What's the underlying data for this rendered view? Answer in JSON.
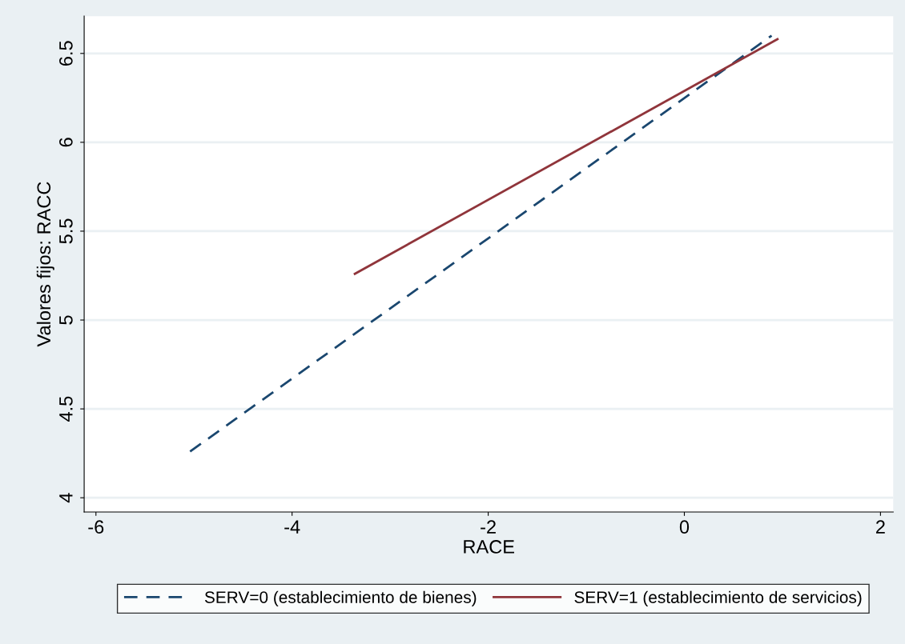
{
  "chart_data": {
    "type": "line",
    "xlabel": "RACE",
    "ylabel": "Valores fijos: RACC",
    "series": [
      {
        "name": "SERV=0 (establecimiento de bienes)",
        "color": "#1a476f",
        "line_style": "dashed",
        "x": [
          -5.04,
          0.89
        ],
        "values": [
          4.26,
          6.6
        ]
      },
      {
        "name": "SERV=1 (establecimiento de servicios)",
        "color": "#90353b",
        "line_style": "solid",
        "x": [
          -3.36,
          0.95
        ],
        "values": [
          5.26,
          6.58
        ]
      }
    ],
    "xlim": [
      -6.12,
      2.13
    ],
    "ylim": [
      3.92,
      6.71
    ],
    "xticks": [
      -6,
      -4,
      -2,
      0,
      2
    ],
    "yticks": [
      4,
      4.5,
      5,
      5.5,
      6,
      6.5
    ],
    "grid": "y",
    "legend": "bottom",
    "marker": "none"
  }
}
